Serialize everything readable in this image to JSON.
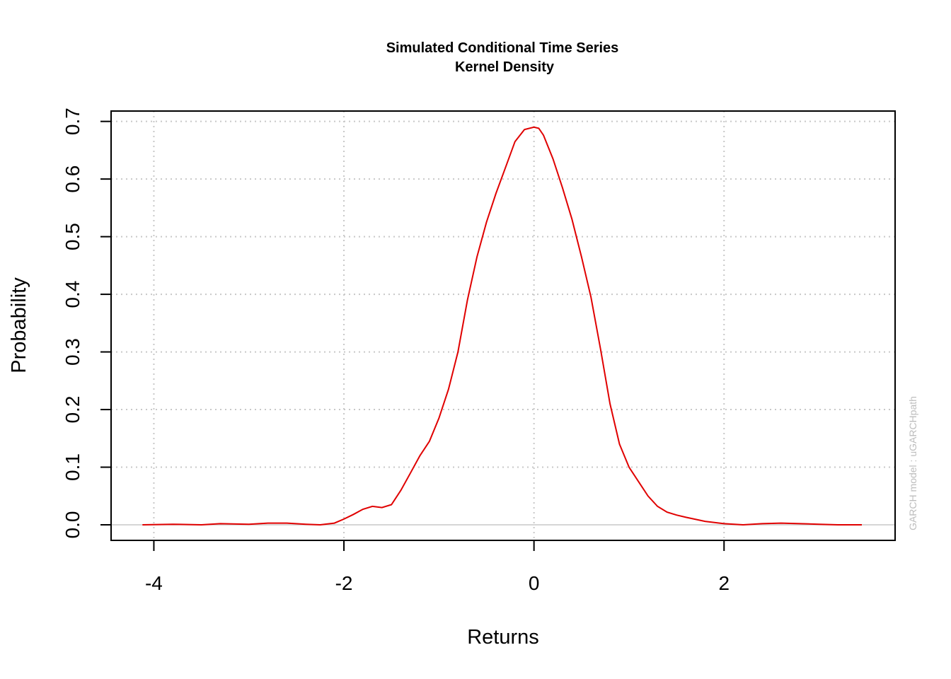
{
  "chart_data": {
    "type": "line",
    "title": "Simulated Conditional Time Series",
    "subtitle": "Kernel Density",
    "xlabel": "Returns",
    "ylabel": "Probability",
    "side_note": "GARCH model : uGARCHpath",
    "xlim": [
      -4.45,
      3.8
    ],
    "ylim": [
      -0.027,
      0.718
    ],
    "x_ticks": [
      -4,
      -2,
      0,
      2
    ],
    "x_tick_labels": [
      "-4",
      "-2",
      "0",
      "2"
    ],
    "y_ticks": [
      0.0,
      0.1,
      0.2,
      0.3,
      0.4,
      0.5,
      0.6,
      0.7
    ],
    "y_tick_labels": [
      "0.0",
      "0.1",
      "0.2",
      "0.3",
      "0.4",
      "0.5",
      "0.6",
      "0.7"
    ],
    "grid": true,
    "colors": {
      "series": "#e00000",
      "grid": "#c8c8c8",
      "frame": "#000000",
      "note": "#bdbdbd"
    },
    "series": [
      {
        "x": [
          -4.12,
          -3.8,
          -3.5,
          -3.3,
          -3.0,
          -2.8,
          -2.6,
          -2.4,
          -2.25,
          -2.1,
          -2.0,
          -1.9,
          -1.8,
          -1.7,
          -1.6,
          -1.5,
          -1.4,
          -1.3,
          -1.2,
          -1.1,
          -1.0,
          -0.9,
          -0.8,
          -0.7,
          -0.6,
          -0.5,
          -0.4,
          -0.3,
          -0.2,
          -0.1,
          0.0,
          0.05,
          0.1,
          0.2,
          0.3,
          0.4,
          0.5,
          0.6,
          0.7,
          0.8,
          0.9,
          1.0,
          1.1,
          1.2,
          1.3,
          1.4,
          1.5,
          1.6,
          1.8,
          2.0,
          2.2,
          2.4,
          2.6,
          2.8,
          3.0,
          3.2,
          3.45
        ],
        "y": [
          0.0,
          0.001,
          0.0,
          0.002,
          0.001,
          0.003,
          0.003,
          0.001,
          0.0,
          0.003,
          0.01,
          0.018,
          0.027,
          0.032,
          0.03,
          0.035,
          0.06,
          0.09,
          0.12,
          0.145,
          0.185,
          0.235,
          0.3,
          0.39,
          0.465,
          0.525,
          0.575,
          0.62,
          0.665,
          0.686,
          0.69,
          0.688,
          0.676,
          0.635,
          0.585,
          0.53,
          0.465,
          0.395,
          0.305,
          0.21,
          0.14,
          0.1,
          0.075,
          0.05,
          0.032,
          0.022,
          0.017,
          0.013,
          0.006,
          0.002,
          0.0,
          0.002,
          0.003,
          0.002,
          0.001,
          0.0,
          0.0
        ]
      }
    ]
  }
}
